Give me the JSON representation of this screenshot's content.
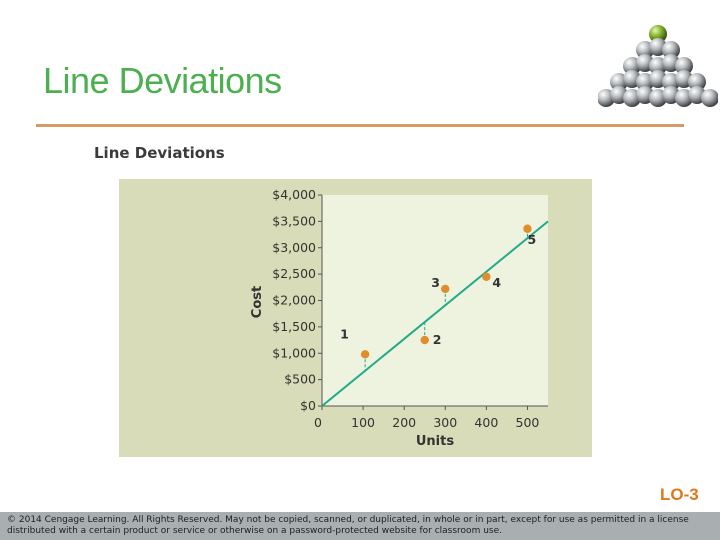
{
  "slide": {
    "title": "Line Deviations",
    "lo_label": "LO-3",
    "footer": "© 2014 Cengage Learning. All Rights Reserved. May not be copied, scanned, or duplicated, in whole or in part, except for use as permitted in a license distributed with a certain product or service or otherwise on a password-protected website for classroom use."
  },
  "chart_data": {
    "type": "scatter",
    "title": "Line Deviations",
    "xlabel": "Units",
    "ylabel": "Cost",
    "xlim": [
      0,
      550
    ],
    "ylim": [
      0,
      4000
    ],
    "x_ticks": [
      0,
      100,
      200,
      300,
      400,
      500
    ],
    "x_tick_labels": [
      "0",
      "100",
      "200",
      "300",
      "400",
      "500"
    ],
    "y_ticks": [
      0,
      500,
      1000,
      1500,
      2000,
      2500,
      3000,
      3500,
      4000
    ],
    "y_tick_labels": [
      "$0",
      "$500",
      "$1,000",
      "$1,500",
      "$2,000",
      "$2,500",
      "$3,000",
      "$3,500",
      "$4,000"
    ],
    "grid": false,
    "points": [
      {
        "label": "1",
        "x": 105,
        "y": 980
      },
      {
        "label": "2",
        "x": 250,
        "y": 1250
      },
      {
        "label": "3",
        "x": 300,
        "y": 2220
      },
      {
        "label": "4",
        "x": 400,
        "y": 2450
      },
      {
        "label": "5",
        "x": 500,
        "y": 3360
      }
    ],
    "fit_line": {
      "x": [
        0,
        550
      ],
      "y": [
        0,
        3500
      ]
    },
    "colors": {
      "panel": "#d9dcb8",
      "plot_area": "#eef3df",
      "line": "#22a98a",
      "points": "#e08d2c",
      "deviation": "#22a98a"
    }
  }
}
